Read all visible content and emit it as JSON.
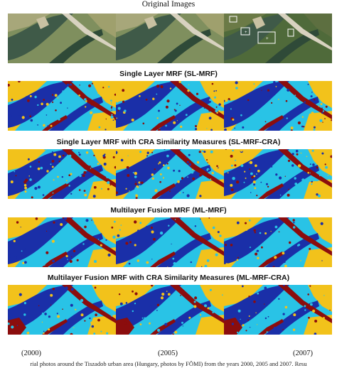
{
  "figure": {
    "rows": [
      {
        "title": "Original Images",
        "kind": "photo"
      },
      {
        "title": "Single Layer MRF (SL-MRF)",
        "kind": "map"
      },
      {
        "title": "Single Layer MRF with CRA Similarity Measures (SL-MRF-CRA)",
        "kind": "map"
      },
      {
        "title": "Multilayer Fusion MRF (ML-MRF)",
        "kind": "map"
      },
      {
        "title": "Multilayer Fusion MRF with CRA Similarity Measures (ML-MRF-CRA)",
        "kind": "map"
      }
    ],
    "years": [
      "(2000)",
      "(2005)",
      "(2007)"
    ],
    "caption": "rial photos around the Tiszadob urban area (Hungary, photos by FÖMI) from the years 2000, 2005 and 2007. Resu",
    "class_colors": {
      "water": "#1a2fa8",
      "vegetation": "#29c3e6",
      "field": "#f2c21b",
      "urban": "#8b0d0d"
    }
  }
}
